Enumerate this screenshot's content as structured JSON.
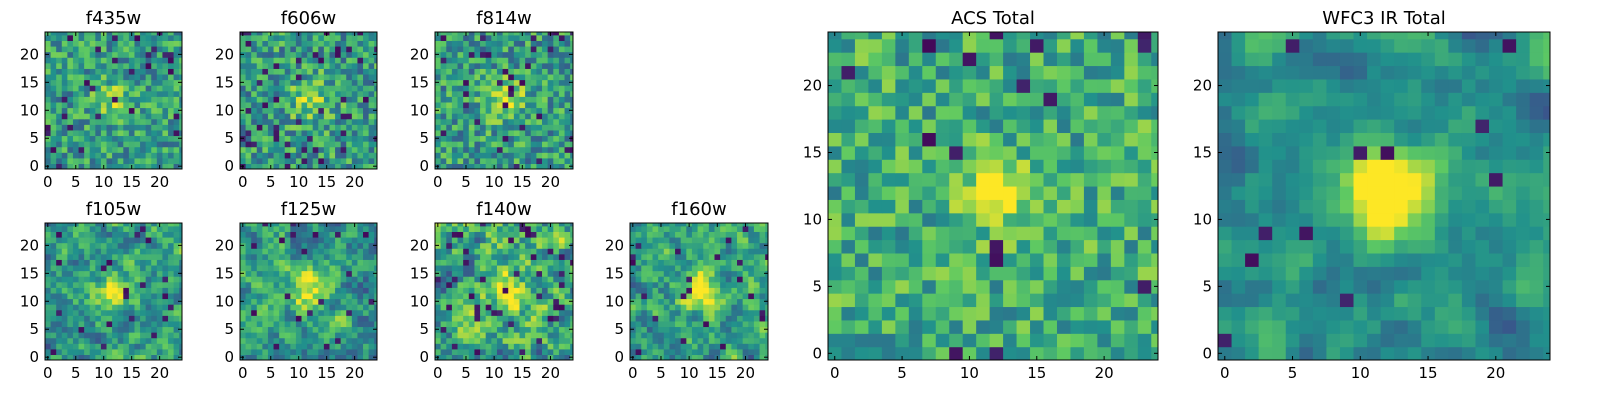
{
  "chart_data": {
    "type": "heatmap",
    "colormap": [
      "#440154",
      "#3b528b",
      "#21918c",
      "#5ec962",
      "#fde725"
    ],
    "panels": [
      {
        "title": "f435w",
        "grid": 25,
        "xticks": [
          0,
          5,
          10,
          15,
          20
        ],
        "yticks": [
          0,
          5,
          10,
          15,
          20
        ],
        "seed": 11,
        "peak": 0.25,
        "sigma": 2.5,
        "smooth": 0,
        "base": 0.55,
        "noise": 0.3,
        "dark": 0.05
      },
      {
        "title": "f606w",
        "grid": 25,
        "xticks": [
          0,
          5,
          10,
          15,
          20
        ],
        "yticks": [
          0,
          5,
          10,
          15,
          20
        ],
        "seed": 23,
        "peak": 0.3,
        "sigma": 2.5,
        "smooth": 0,
        "base": 0.55,
        "noise": 0.32,
        "dark": 0.06
      },
      {
        "title": "f814w",
        "grid": 25,
        "xticks": [
          0,
          5,
          10,
          15,
          20
        ],
        "yticks": [
          0,
          5,
          10,
          15,
          20
        ],
        "seed": 37,
        "peak": 0.35,
        "sigma": 2.5,
        "smooth": 0,
        "base": 0.55,
        "noise": 0.32,
        "dark": 0.06
      },
      {
        "title": "f105w",
        "grid": 25,
        "xticks": [
          0,
          5,
          10,
          15,
          20
        ],
        "yticks": [
          0,
          5,
          10,
          15,
          20
        ],
        "seed": 41,
        "peak": 0.45,
        "sigma": 2.5,
        "smooth": 1,
        "base": 0.55,
        "noise": 0.4,
        "dark": 0.04
      },
      {
        "title": "f125w",
        "grid": 25,
        "xticks": [
          0,
          5,
          10,
          15,
          20
        ],
        "yticks": [
          0,
          5,
          10,
          15,
          20
        ],
        "seed": 53,
        "peak": 0.4,
        "sigma": 2.5,
        "smooth": 1,
        "base": 0.55,
        "noise": 0.4,
        "dark": 0.04
      },
      {
        "title": "f140w",
        "grid": 25,
        "xticks": [
          0,
          5,
          10,
          15,
          20
        ],
        "yticks": [
          0,
          5,
          10,
          15,
          20
        ],
        "seed": 67,
        "peak": 0.35,
        "sigma": 2.5,
        "smooth": 1,
        "base": 0.6,
        "noise": 0.45,
        "dark": 0.05
      },
      {
        "title": "f160w",
        "grid": 25,
        "xticks": [
          0,
          5,
          10,
          15,
          20
        ],
        "yticks": [
          0,
          5,
          10,
          15,
          20
        ],
        "seed": 79,
        "peak": 0.5,
        "sigma": 2.5,
        "smooth": 1,
        "base": 0.55,
        "noise": 0.4,
        "dark": 0.05
      },
      {
        "title": "ACS Total",
        "grid": 25,
        "xticks": [
          0,
          5,
          10,
          15,
          20
        ],
        "yticks": [
          0,
          5,
          10,
          15,
          20
        ],
        "seed": 97,
        "peak": 0.55,
        "sigma": 1.6,
        "smooth": 0,
        "base": 0.62,
        "noise": 0.28,
        "dark": 0.03
      },
      {
        "title": "WFC3 IR Total",
        "grid": 25,
        "xticks": [
          0,
          5,
          10,
          15,
          20
        ],
        "yticks": [
          0,
          5,
          10,
          15,
          20
        ],
        "seed": 113,
        "peak": 0.75,
        "sigma": 2.2,
        "smooth": 2,
        "base": 0.5,
        "noise": 0.3,
        "dark": 0.02
      }
    ]
  }
}
